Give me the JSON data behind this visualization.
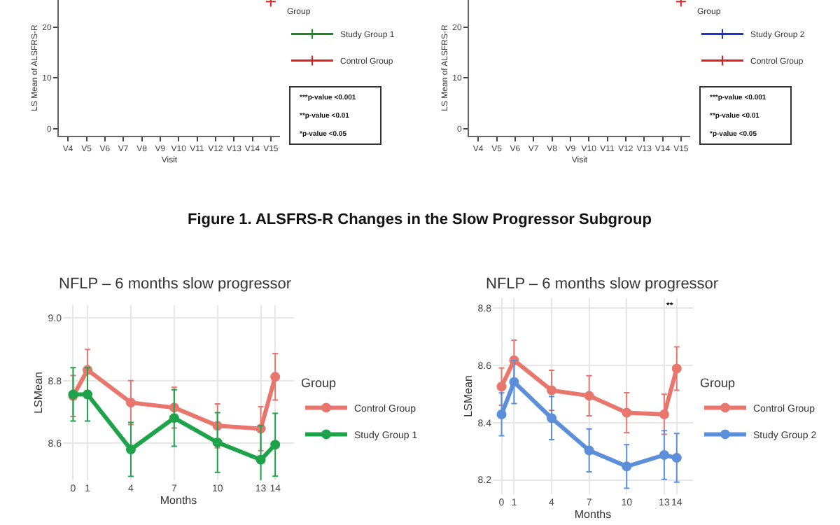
{
  "chart_data": [
    {
      "type": "line",
      "xlabel": "Visit",
      "ylabel": "LS Mean of ALSFRS-R",
      "legend_title": "Group",
      "categories": [
        "V4",
        "V5",
        "V6",
        "V7",
        "V8",
        "V9",
        "V10",
        "V11",
        "V12",
        "V13",
        "V14",
        "V15"
      ],
      "ylim": [
        -1.4,
        25.3
      ],
      "yticks": [
        0,
        10,
        20
      ],
      "grid": false,
      "legend": "right",
      "marker": "cross",
      "series": [
        {
          "name": "Study Group 1",
          "color": "#1a8a1a",
          "values": [
            null,
            null,
            null,
            null,
            null,
            null,
            null,
            null,
            null,
            null,
            null,
            null
          ]
        },
        {
          "name": "Control Group",
          "color": "#e0201a",
          "values": [
            null,
            null,
            null,
            null,
            null,
            null,
            null,
            null,
            null,
            null,
            null,
            25
          ]
        }
      ],
      "annotations": [
        "***p-value <0.001",
        "**p-value <0.01",
        "*p-value <0.05"
      ]
    },
    {
      "type": "line",
      "xlabel": "Visit",
      "ylabel": "LS Mean of ALSFRS-R",
      "legend_title": "Group",
      "categories": [
        "V4",
        "V5",
        "V6",
        "V7",
        "V8",
        "V9",
        "V10",
        "V11",
        "V12",
        "V13",
        "V14",
        "V15"
      ],
      "ylim": [
        -1.4,
        25.3
      ],
      "yticks": [
        0,
        10,
        20
      ],
      "grid": false,
      "legend": "right",
      "marker": "cross",
      "series": [
        {
          "name": "Study Group 2",
          "color": "#2030c0",
          "values": [
            null,
            null,
            null,
            null,
            null,
            null,
            null,
            null,
            null,
            null,
            null,
            null
          ]
        },
        {
          "name": "Control Group",
          "color": "#e0201a",
          "values": [
            null,
            null,
            null,
            null,
            null,
            null,
            null,
            null,
            null,
            null,
            null,
            25
          ]
        }
      ],
      "annotations": [
        "***p-value <0.001",
        "**p-value <0.01",
        "*p-value <0.05"
      ]
    },
    {
      "type": "line",
      "title": "NFLP – 6 months slow progressor",
      "xlabel": "Months",
      "ylabel": "LSMean",
      "legend_title": "Group",
      "x": [
        0,
        1,
        4,
        7,
        10,
        13,
        14
      ],
      "xlim": [
        -0.7,
        15.3
      ],
      "xticks": [
        0,
        1,
        4,
        7,
        10,
        13,
        14
      ],
      "ylim": [
        8.483,
        9.04
      ],
      "yticks": [
        8.6,
        8.8,
        {
          "value": 9,
          "label": "9.0"
        }
      ],
      "grid": true,
      "legend": "right",
      "marker": "circle",
      "series": [
        {
          "name": "Control Group",
          "color": "#e8766c",
          "values": [
            8.751,
            8.834,
            8.73,
            8.714,
            8.656,
            8.647,
            8.812
          ],
          "errors": [
            0.065,
            0.065,
            0.07,
            0.065,
            0.07,
            0.07,
            0.074
          ]
        },
        {
          "name": "Study Group 1",
          "color": "#1fa34a",
          "values": [
            8.756,
            8.756,
            8.581,
            8.681,
            8.603,
            8.548,
            8.596
          ],
          "errors": [
            0.085,
            0.085,
            0.086,
            0.09,
            0.095,
            0.108,
            0.1
          ]
        }
      ],
      "annotations": [
        "Figure 1. ALSFRS-R Changes in the Slow Progressor Subgroup"
      ]
    },
    {
      "type": "line",
      "title": "NFLP – 6 months slow progressor",
      "xlabel": "Months",
      "ylabel": "LSMean",
      "legend_title": "Group",
      "x": [
        0,
        1,
        4,
        7,
        10,
        13,
        14
      ],
      "xlim": [
        -0.7,
        15.3
      ],
      "xticks": [
        0,
        1,
        4,
        7,
        10,
        13,
        14
      ],
      "ylim": [
        8.15,
        8.835
      ],
      "yticks": [
        8.2,
        8.4,
        8.6,
        8.8
      ],
      "grid": true,
      "legend": "right",
      "marker": "circle",
      "series": [
        {
          "name": "Control Group",
          "color": "#e8766c",
          "values": [
            8.526,
            8.618,
            8.513,
            8.494,
            8.435,
            8.429,
            8.589
          ],
          "errors": [
            0.065,
            0.07,
            0.07,
            0.07,
            0.07,
            0.07,
            0.076
          ]
        },
        {
          "name": "Study Group 2",
          "color": "#5b8fd9",
          "values": [
            8.429,
            8.542,
            8.416,
            8.303,
            8.247,
            8.287,
            8.277
          ],
          "errors": [
            0.075,
            0.075,
            0.075,
            0.075,
            0.076,
            0.085,
            0.085
          ]
        }
      ],
      "annotations": [
        "**"
      ]
    }
  ]
}
